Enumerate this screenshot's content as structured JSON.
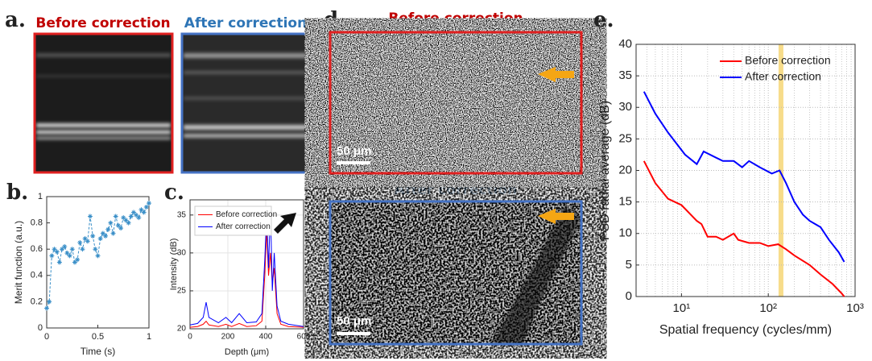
{
  "panel_a": {
    "label": "a.",
    "before_title": "Before correction",
    "after_title": "After correction"
  },
  "panel_d": {
    "label": "d.",
    "before_title": "Before correction",
    "after_title": "After correction",
    "scale_bar": "50 μm"
  },
  "chart_data": [
    {
      "type": "line",
      "label": "b.",
      "xlabel": "Time (s)",
      "ylabel": "Merit function (a.u.)",
      "xlim": [
        0,
        1
      ],
      "xticks": [
        0,
        0.5,
        1
      ],
      "ylim": [
        0,
        1
      ],
      "yticks": [
        0,
        0.2,
        0.4,
        0.6,
        0.8,
        1
      ],
      "series": [
        {
          "color": "#3a8fc8",
          "marker": "*",
          "dashed": true,
          "x": [
            0,
            0.025,
            0.05,
            0.075,
            0.1,
            0.125,
            0.15,
            0.175,
            0.2,
            0.225,
            0.25,
            0.275,
            0.3,
            0.325,
            0.35,
            0.375,
            0.4,
            0.425,
            0.45,
            0.475,
            0.5,
            0.525,
            0.55,
            0.575,
            0.6,
            0.625,
            0.65,
            0.675,
            0.7,
            0.725,
            0.75,
            0.775,
            0.8,
            0.825,
            0.85,
            0.875,
            0.9,
            0.925,
            0.95,
            0.975,
            1
          ],
          "values": [
            0.15,
            0.2,
            0.55,
            0.6,
            0.58,
            0.5,
            0.6,
            0.62,
            0.57,
            0.55,
            0.6,
            0.5,
            0.52,
            0.65,
            0.6,
            0.68,
            0.66,
            0.85,
            0.7,
            0.6,
            0.55,
            0.68,
            0.72,
            0.7,
            0.75,
            0.8,
            0.72,
            0.85,
            0.78,
            0.76,
            0.84,
            0.82,
            0.8,
            0.85,
            0.88,
            0.86,
            0.84,
            0.9,
            0.88,
            0.92,
            0.95
          ]
        }
      ]
    },
    {
      "type": "line",
      "label": "c.",
      "xlabel": "Depth (μm)",
      "ylabel": "Intensity (dB)",
      "xlim": [
        0,
        600
      ],
      "xticks": [
        0,
        200,
        400,
        600
      ],
      "ylim": [
        20,
        37
      ],
      "yticks": [
        20,
        25,
        30,
        35
      ],
      "grid": true,
      "legend": "upper left",
      "series": [
        {
          "name": "Before correction",
          "color": "#ff0000",
          "x": [
            0,
            40,
            70,
            85,
            100,
            150,
            190,
            220,
            260,
            300,
            350,
            380,
            395,
            405,
            415,
            425,
            435,
            445,
            460,
            480,
            520,
            600
          ],
          "values": [
            20.2,
            20.3,
            20.6,
            21,
            20.5,
            20.3,
            20.6,
            20.3,
            20.7,
            20.3,
            20.4,
            21,
            27,
            33,
            27,
            30,
            26,
            28,
            22,
            20.6,
            20.3,
            20.2
          ]
        },
        {
          "name": "After correction",
          "color": "#0000ff",
          "x": [
            0,
            40,
            70,
            85,
            100,
            150,
            190,
            220,
            260,
            300,
            350,
            380,
            395,
            405,
            415,
            425,
            435,
            445,
            460,
            480,
            520,
            600
          ],
          "values": [
            20.5,
            20.7,
            21.5,
            23.5,
            21.5,
            20.8,
            21.5,
            20.8,
            22,
            20.8,
            20.9,
            22,
            29,
            35,
            28,
            36,
            25,
            30,
            23,
            21,
            20.6,
            20.3
          ]
        }
      ]
    },
    {
      "type": "line",
      "label": "e.",
      "xlabel": "Spatial frequency (cycles/mm)",
      "ylabel": "PSD radial average (dB)",
      "xscale": "log",
      "xlim": [
        3,
        1000
      ],
      "xticks": [
        {
          "value": 10,
          "label": "10¹"
        },
        {
          "value": 100,
          "label": "10²"
        },
        {
          "value": 1000,
          "label": "10³"
        }
      ],
      "ylim": [
        0,
        40
      ],
      "yticks": [
        0,
        5,
        10,
        15,
        20,
        25,
        30,
        35,
        40
      ],
      "grid": true,
      "minor_grid": true,
      "legend": "upper right",
      "highlight": {
        "x": 140,
        "color": "#f7dc8a"
      },
      "series": [
        {
          "name": "Before correction",
          "color": "#ff0000",
          "x": [
            3.7,
            5,
            7,
            10,
            15,
            17,
            20,
            25,
            30,
            40,
            45,
            60,
            80,
            100,
            130,
            160,
            200,
            300,
            400,
            550,
            700,
            750
          ],
          "values": [
            21.5,
            18,
            15.5,
            14.5,
            12,
            11.5,
            9.5,
            9.5,
            9,
            10,
            9,
            8.5,
            8.5,
            8,
            8.3,
            7.5,
            6.5,
            5,
            3.5,
            2,
            0.5,
            0
          ]
        },
        {
          "name": "After correction",
          "color": "#0000ff",
          "x": [
            3.7,
            5,
            7,
            11,
            15,
            18,
            30,
            40,
            50,
            60,
            80,
            110,
            135,
            160,
            200,
            250,
            300,
            400,
            500,
            650,
            750
          ],
          "values": [
            32.5,
            29,
            26,
            22.5,
            21,
            23,
            21.5,
            21.5,
            20.5,
            21.5,
            20.5,
            19.5,
            20,
            18,
            15,
            13,
            12,
            11,
            9,
            7,
            5.5
          ]
        }
      ]
    }
  ]
}
